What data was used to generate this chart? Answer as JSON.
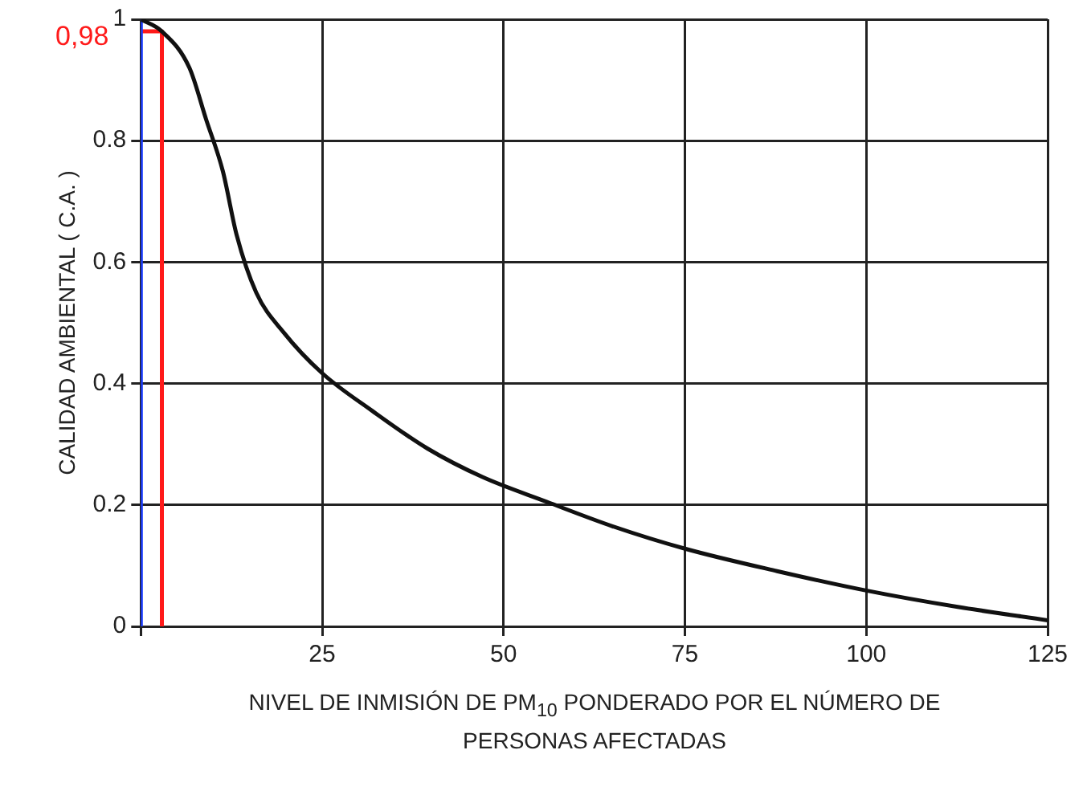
{
  "chart_data": {
    "type": "line",
    "xlabel": "NIVEL DE INMISIÓN DE PM$_{10}$ PONDERADO POR EL NÚMERO DE PERSONAS AFECTADAS",
    "ylabel": "CALIDAD AMBIENTAL ( C.A. )",
    "series": [
      {
        "color": "#111111",
        "x": [
          0,
          2.9,
          6.7,
          9,
          11.3,
          13.2,
          15.9,
          19.7,
          25,
          31.9,
          39.5,
          47.1,
          56,
          65,
          75,
          87.7,
          100,
          112.6,
          125
        ],
        "values": [
          1,
          0.98,
          0.92,
          0.835,
          0.75,
          0.645,
          0.55,
          0.484,
          0.417,
          0.355,
          0.293,
          0.246,
          0.205,
          0.165,
          0.128,
          0.091,
          0.059,
          0.032,
          0.01
        ]
      },
      {
        "color": "#1a3cff",
        "x": [
          0,
          0
        ],
        "values": [
          0,
          1
        ]
      },
      {
        "color": "#ff1a1a",
        "x": [
          0,
          2.9,
          2.9
        ],
        "values": [
          0.98,
          0.98,
          0
        ]
      }
    ],
    "xlim": [
      0,
      125
    ],
    "xticks": [
      {
        "value": 0,
        "label": null
      },
      25,
      50,
      75,
      100,
      125
    ],
    "ylim": [
      0,
      1
    ],
    "yticks": [
      0,
      0.2,
      0.4,
      0.6,
      0.8,
      1
    ],
    "annotations": [
      {
        "text": "0,98",
        "x": 0,
        "y": 0.98
      }
    ],
    "grid": true,
    "legend": false,
    "marker": "none",
    "line_style": "solid"
  }
}
